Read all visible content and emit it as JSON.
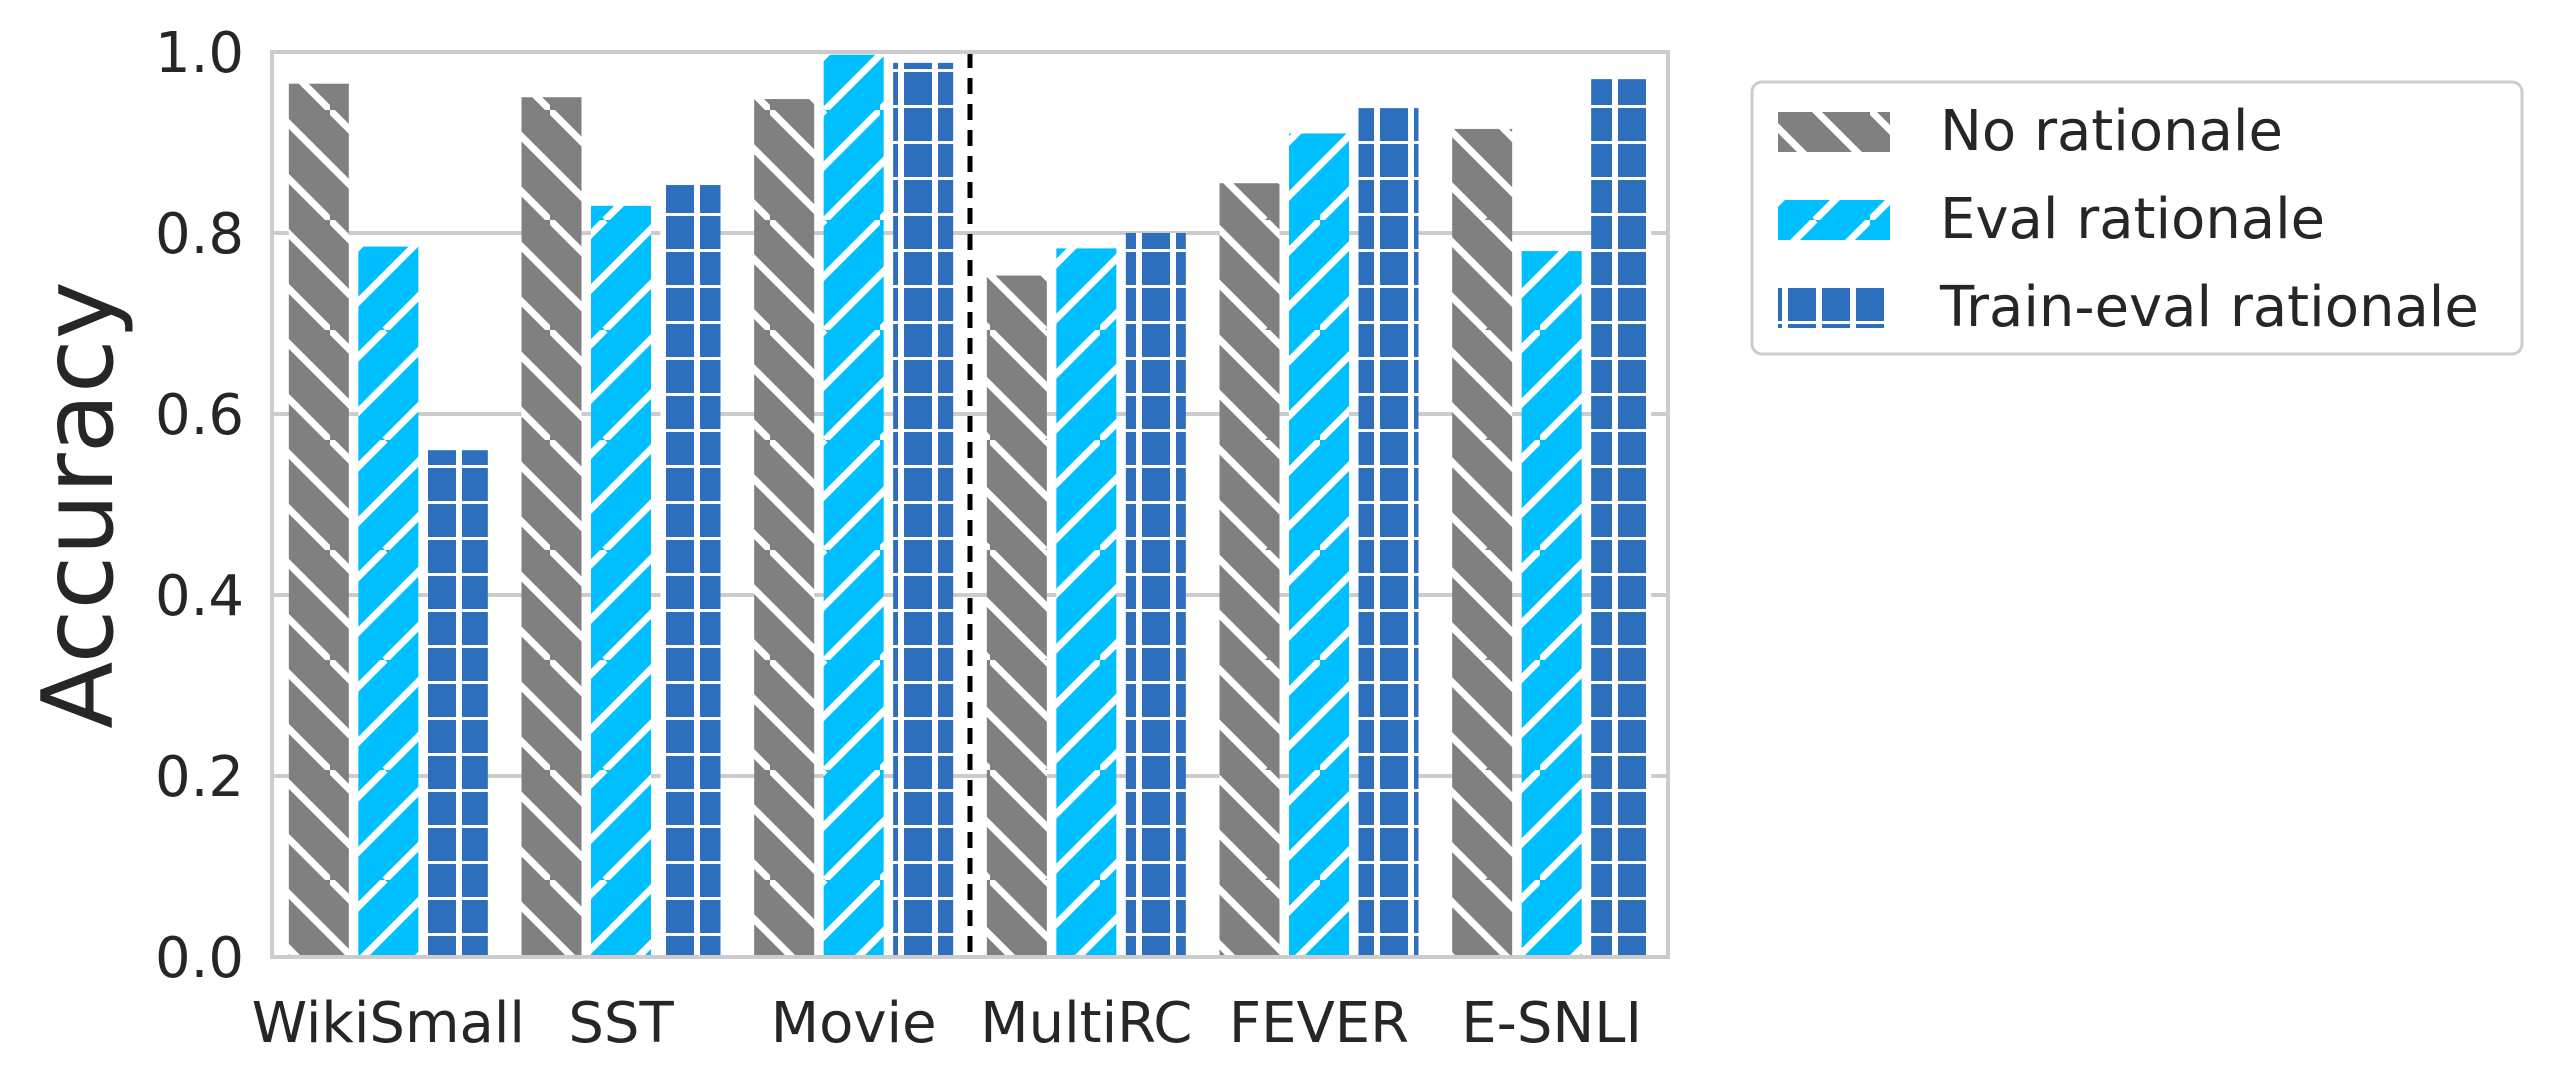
{
  "chart_data": {
    "type": "bar",
    "categories": [
      "WikiSmall",
      "SST",
      "Movie",
      "MultiRC",
      "FEVER",
      "E-SNLI"
    ],
    "series": [
      {
        "name": "No rationale",
        "values": [
          0.965,
          0.95,
          0.948,
          0.753,
          0.855,
          0.915
        ],
        "color": "#808080",
        "hatch": "backslash"
      },
      {
        "name": "Eval rationale",
        "values": [
          0.785,
          0.83,
          0.997,
          0.783,
          0.91,
          0.78
        ],
        "color": "#00bfff",
        "hatch": "slash"
      },
      {
        "name": "Train-eval rationale",
        "values": [
          0.56,
          0.853,
          0.988,
          0.8,
          0.938,
          0.97
        ],
        "color": "#2d6fbd",
        "hatch": "grid"
      }
    ],
    "ylabel": "Accuracy",
    "xlabel": "",
    "ylim": [
      0.0,
      1.0
    ],
    "yticks": [
      "0.0",
      "0.2",
      "0.4",
      "0.6",
      "0.8",
      "1.0"
    ],
    "grid": "horizontal",
    "divider_after_category": "Movie",
    "legend_position": "outside-right"
  }
}
